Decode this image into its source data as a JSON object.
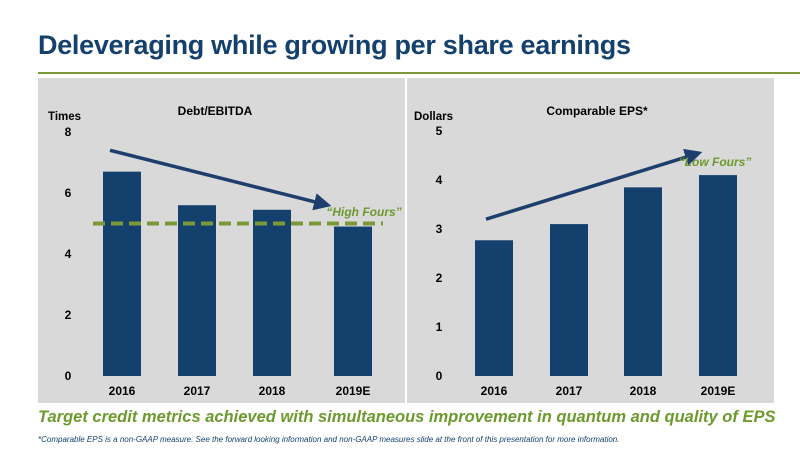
{
  "page": {
    "title": "Deleveraging while growing per share earnings",
    "tagline": "Target credit metrics achieved with simultaneous improvement in quantum and quality of EPS",
    "footnote": "*Comparable EPS is a non-GAAP measure.  See the forward looking information and non-GAAP measures slide at the front of this presentation for more information."
  },
  "colors": {
    "title": "#14406e",
    "bar": "#14406e",
    "arrow": "#1e3f6e",
    "accent_green": "#6c9a2d",
    "panel_bg": "#d9d9d9"
  },
  "chart_data": [
    {
      "type": "bar",
      "title": "Debt/EBITDA",
      "ylabel": "Times",
      "xlabel": "",
      "ylim": [
        0,
        8
      ],
      "yticks": [
        "0",
        "2",
        "4",
        "6",
        "8"
      ],
      "categories": [
        "2016",
        "2017",
        "2018",
        "2019E"
      ],
      "values": [
        6.7,
        5.6,
        5.45,
        4.9
      ],
      "grid": false,
      "reference_line": {
        "value": 5.0,
        "style": "dashed",
        "color": "#7a9a3a"
      },
      "annotation": "“High Fours”",
      "trend_arrow": {
        "from": [
          0,
          7.4
        ],
        "to": [
          3,
          5.6
        ]
      }
    },
    {
      "type": "bar",
      "title": "Comparable EPS*",
      "ylabel": "Dollars",
      "xlabel": "",
      "ylim": [
        0,
        5
      ],
      "yticks": [
        "0",
        "1",
        "2",
        "3",
        "4",
        "5"
      ],
      "categories": [
        "2016",
        "2017",
        "2018",
        "2019E"
      ],
      "values": [
        2.77,
        3.1,
        3.85,
        4.1
      ],
      "grid": false,
      "annotation": "“Low Fours”",
      "trend_arrow": {
        "from": [
          0,
          3.2
        ],
        "to": [
          3,
          4.55
        ]
      }
    }
  ]
}
